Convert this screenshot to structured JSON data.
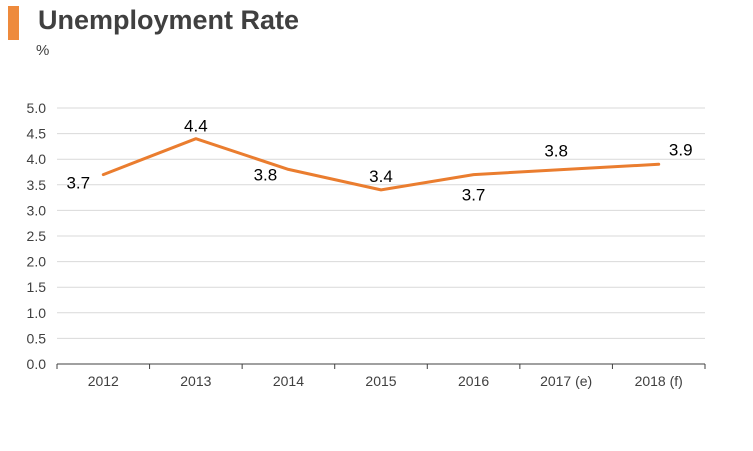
{
  "colors": {
    "accent": "#ee8a3c",
    "line": "#ea7d2f",
    "grid": "#d9d9d9",
    "axis": "#404040",
    "text": "#404040"
  },
  "chart_data": {
    "type": "line",
    "title": "Unemployment Rate",
    "unit": "%",
    "categories": [
      "2012",
      "2013",
      "2014",
      "2015",
      "2016",
      "2017 (e)",
      "2018 (f)"
    ],
    "series": [
      {
        "values": [
          3.7,
          4.4,
          3.8,
          3.4,
          3.7,
          3.8,
          3.9
        ]
      }
    ],
    "data_labels": [
      "3.7",
      "4.4",
      "3.8",
      "3.4",
      "3.7",
      "3.8",
      "3.9"
    ],
    "ylim": [
      0,
      5
    ],
    "yticks": [
      "0.0",
      "0.5",
      "1.0",
      "1.5",
      "2.0",
      "2.5",
      "3.0",
      "3.5",
      "4.0",
      "4.5",
      "5.0"
    ],
    "grid": true,
    "legend": "none"
  }
}
